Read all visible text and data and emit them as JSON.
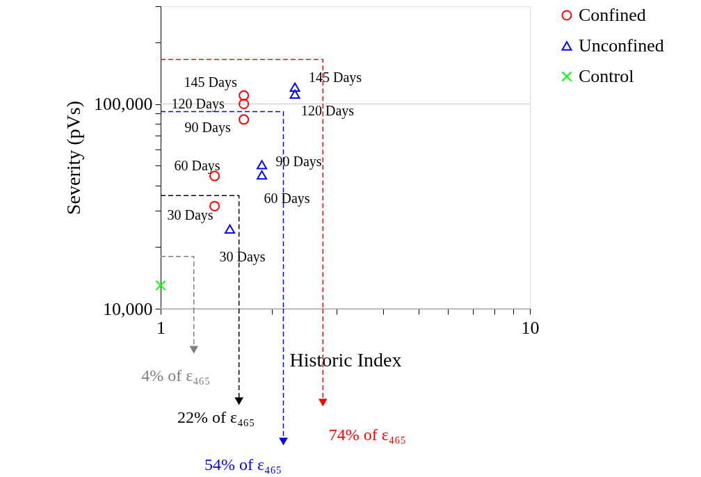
{
  "chart_data": {
    "type": "scatter",
    "xlabel": "Historic Index",
    "ylabel": "Severity (pVs)",
    "log": "xy",
    "grid": "y",
    "legend": "right",
    "xlim": [
      1,
      10
    ],
    "xticks": [
      1,
      {
        "value": 2,
        "label": null
      },
      {
        "value": 3,
        "label": null
      },
      {
        "value": 4,
        "label": null
      },
      {
        "value": 5,
        "label": null
      },
      {
        "value": 6,
        "label": null
      },
      {
        "value": 7,
        "label": null
      },
      {
        "value": 8,
        "label": null
      },
      {
        "value": 9,
        "label": null
      },
      10
    ],
    "ylim": [
      10000,
      300000
    ],
    "yticks": [
      {
        "value": 10000,
        "label": "10,000"
      },
      {
        "value": 20000,
        "label": null
      },
      {
        "value": 30000,
        "label": null
      },
      {
        "value": 40000,
        "label": null
      },
      {
        "value": 50000,
        "label": null
      },
      {
        "value": 60000,
        "label": null
      },
      {
        "value": 70000,
        "label": null
      },
      {
        "value": 80000,
        "label": null
      },
      {
        "value": 90000,
        "label": null
      },
      {
        "value": 100000,
        "label": "100,000"
      },
      {
        "value": 200000,
        "label": null
      },
      {
        "value": 300000,
        "label": null
      }
    ],
    "series": [
      {
        "name": "Confined",
        "marker": "circle",
        "color": "#ff0000",
        "x": [
          1.4,
          1.4,
          1.68,
          1.68,
          1.68
        ],
        "values": [
          31700,
          44500,
          84000,
          100000,
          110000
        ]
      },
      {
        "name": "Unconfined",
        "marker": "triangle",
        "color": "#0000ff",
        "x": [
          1.54,
          1.88,
          1.88,
          2.31,
          2.31
        ],
        "values": [
          24500,
          45000,
          50500,
          111600,
          120800
        ]
      },
      {
        "name": "Control",
        "marker": "cross",
        "color": "#00ff00",
        "x": [
          1
        ],
        "values": [
          13000
        ]
      },
      {
        "type": "line",
        "line_style": "dashed",
        "color": "#808080",
        "x": [
          1,
          1.23,
          1.23
        ],
        "values": [
          18000,
          18000,
          10000
        ]
      },
      {
        "type": "line",
        "line_style": "dashed",
        "color": "#000000",
        "x": [
          1,
          1.63,
          1.63
        ],
        "values": [
          35700,
          35700,
          10000
        ]
      },
      {
        "type": "line",
        "line_style": "dashed",
        "color": "#0000ff",
        "x": [
          1,
          2.15,
          2.15
        ],
        "values": [
          91700,
          91700,
          10000
        ]
      },
      {
        "type": "line",
        "line_style": "dashed",
        "color": "#ff0000",
        "x": [
          1,
          2.75,
          2.75
        ],
        "values": [
          165000,
          165000,
          10000
        ]
      }
    ],
    "annotations": [
      {
        "text": "30 Days",
        "x": 1.4,
        "y": 31700
      },
      {
        "text": "60 Days",
        "x": 1.4,
        "y": 44500
      },
      {
        "text": "90 Days",
        "x": 1.68,
        "y": 84000
      },
      {
        "text": "120 Days",
        "x": 1.68,
        "y": 100000
      },
      {
        "text": "145 Days",
        "x": 1.68,
        "y": 110000
      },
      {
        "text": "30 Days",
        "x": 1.54,
        "y": 24500
      },
      {
        "text": "60 Days",
        "x": 1.88,
        "y": 45000
      },
      {
        "text": "90 Days",
        "x": 1.88,
        "y": 50500
      },
      {
        "text": "120 Days",
        "x": 2.31,
        "y": 111600
      },
      {
        "text": "145 Days",
        "x": 2.31,
        "y": 120800
      },
      "4% of ε₄₆₅",
      "22% of ε₄₆₅",
      "54% of ε₄₆₅",
      "74% of ε₄₆₅"
    ]
  }
}
